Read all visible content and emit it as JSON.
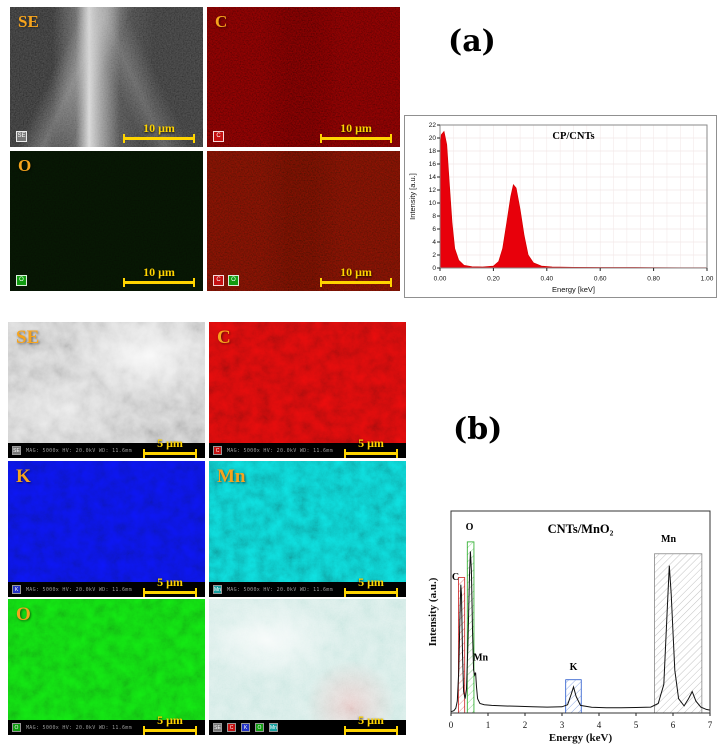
{
  "panels": {
    "a": {
      "label": "(a)",
      "tiles": {
        "se": {
          "label": "SE",
          "scale": "10 μm",
          "chip": "SE"
        },
        "c": {
          "label": "C",
          "scale": "10 μm",
          "chip": "C"
        },
        "o": {
          "label": "O",
          "scale": "10 μm",
          "chip": "O"
        },
        "overlay": {
          "scale": "10 μm",
          "chips": [
            "C",
            "O"
          ]
        }
      }
    },
    "b": {
      "label": "(b)",
      "meta": "MAG: 5000x  HV: 20.0kV  WD: 11.6mm",
      "tiles": {
        "se": {
          "label": "SE",
          "scale": "5 μm",
          "chip": "SE"
        },
        "c": {
          "label": "C",
          "scale": "5 μm",
          "chip": "C"
        },
        "k": {
          "label": "K",
          "scale": "5 μm",
          "chip": "K"
        },
        "mn": {
          "label": "Mn",
          "scale": "5 μm",
          "chip": "Mn"
        },
        "o": {
          "label": "O",
          "scale": "5 μm",
          "chip": "O"
        },
        "overlay": {
          "scale": "5 μm",
          "chips": [
            "SE",
            "C",
            "K",
            "O",
            "Mn"
          ]
        }
      }
    }
  },
  "chart_data": [
    {
      "type": "area",
      "title": "CP/CNTs",
      "xlabel": "Energy [keV]",
      "ylabel": "Intensity [a.u.]",
      "xlim": [
        0,
        1.0
      ],
      "ylim": [
        0,
        22
      ],
      "grid": true,
      "legend_position": "none",
      "line_color": "#d40000",
      "fill_color": "#e8000b",
      "baseline_color": "#e8000b",
      "frame_color": "#8a8a8a",
      "xticks": [
        [
          0,
          "0.00"
        ],
        [
          0.2,
          "0.20"
        ],
        [
          0.4,
          "0.40"
        ],
        [
          0.6,
          "0.60"
        ],
        [
          0.8,
          "0.80"
        ],
        [
          1,
          "1.00"
        ]
      ],
      "yticks": [
        [
          0,
          "0"
        ],
        [
          2,
          "2"
        ],
        [
          4,
          "4"
        ],
        [
          6,
          "6"
        ],
        [
          8,
          "8"
        ],
        [
          10,
          "10"
        ],
        [
          12,
          "12"
        ],
        [
          14,
          "14"
        ],
        [
          16,
          "16"
        ],
        [
          18,
          "18"
        ],
        [
          20,
          "20"
        ],
        [
          22,
          "22"
        ]
      ],
      "points": [
        [
          0,
          18
        ],
        [
          0.005,
          20.5
        ],
        [
          0.015,
          21
        ],
        [
          0.025,
          19
        ],
        [
          0.035,
          13
        ],
        [
          0.045,
          7
        ],
        [
          0.055,
          3
        ],
        [
          0.07,
          1.2
        ],
        [
          0.09,
          0.4
        ],
        [
          0.12,
          0.2
        ],
        [
          0.16,
          0.15
        ],
        [
          0.2,
          0.3
        ],
        [
          0.22,
          1
        ],
        [
          0.235,
          3
        ],
        [
          0.25,
          7
        ],
        [
          0.265,
          11
        ],
        [
          0.275,
          12.8
        ],
        [
          0.285,
          12.3
        ],
        [
          0.3,
          9
        ],
        [
          0.315,
          5
        ],
        [
          0.33,
          2
        ],
        [
          0.35,
          0.8
        ],
        [
          0.38,
          0.3
        ],
        [
          0.42,
          0.15
        ],
        [
          0.5,
          0.1
        ],
        [
          0.6,
          0.08
        ],
        [
          0.7,
          0.08
        ],
        [
          0.8,
          0.06
        ],
        [
          0.9,
          0.05
        ],
        [
          1,
          0.05
        ]
      ]
    },
    {
      "type": "line",
      "title": "CNTs/MnO₂",
      "xlabel": "Energy (keV)",
      "ylabel": "Intensity (a.u.)",
      "xlim": [
        0,
        7
      ],
      "ylim": [
        0,
        85
      ],
      "grid": false,
      "legend_position": "none",
      "line_color": "#111111",
      "frame_color": "#333333",
      "xticks": [
        [
          0,
          "0"
        ],
        [
          1,
          "1"
        ],
        [
          2,
          "2"
        ],
        [
          3,
          "3"
        ],
        [
          4,
          "4"
        ],
        [
          5,
          "5"
        ],
        [
          6,
          "6"
        ],
        [
          7,
          "7"
        ]
      ],
      "points": [
        [
          0,
          0.5
        ],
        [
          0.08,
          1
        ],
        [
          0.13,
          2
        ],
        [
          0.17,
          5
        ],
        [
          0.21,
          18
        ],
        [
          0.24,
          40
        ],
        [
          0.265,
          54
        ],
        [
          0.285,
          50
        ],
        [
          0.31,
          25
        ],
        [
          0.34,
          9
        ],
        [
          0.38,
          6
        ],
        [
          0.42,
          10
        ],
        [
          0.46,
          30
        ],
        [
          0.5,
          58
        ],
        [
          0.525,
          68
        ],
        [
          0.55,
          60
        ],
        [
          0.58,
          35
        ],
        [
          0.61,
          18
        ],
        [
          0.64,
          16
        ],
        [
          0.665,
          17
        ],
        [
          0.69,
          11
        ],
        [
          0.72,
          6
        ],
        [
          0.78,
          4
        ],
        [
          0.9,
          3.5
        ],
        [
          1.1,
          3.2
        ],
        [
          1.4,
          3
        ],
        [
          1.8,
          2.8
        ],
        [
          2.2,
          2.6
        ],
        [
          2.6,
          2.5
        ],
        [
          3,
          2.6
        ],
        [
          3.15,
          3.5
        ],
        [
          3.25,
          8
        ],
        [
          3.31,
          11
        ],
        [
          3.38,
          7
        ],
        [
          3.5,
          3.2
        ],
        [
          3.8,
          2.4
        ],
        [
          4.2,
          2.2
        ],
        [
          4.6,
          2.2
        ],
        [
          5,
          2.3
        ],
        [
          5.4,
          2.5
        ],
        [
          5.6,
          4
        ],
        [
          5.75,
          12
        ],
        [
          5.85,
          45
        ],
        [
          5.9,
          62
        ],
        [
          5.95,
          50
        ],
        [
          6.05,
          18
        ],
        [
          6.15,
          6
        ],
        [
          6.3,
          3
        ],
        [
          6.42,
          6
        ],
        [
          6.52,
          9
        ],
        [
          6.62,
          5
        ],
        [
          6.75,
          2.5
        ],
        [
          6.9,
          1.5
        ],
        [
          7,
          1.2
        ]
      ],
      "regions": [
        {
          "label": "C",
          "x0": 0.2,
          "x1": 0.37,
          "y1": 57,
          "color": "#cc2222"
        },
        {
          "label": "O",
          "x0": 0.44,
          "x1": 0.62,
          "y1": 72,
          "color": "#22aa22"
        },
        {
          "label": "K",
          "x0": 3.1,
          "x1": 3.52,
          "y1": 14,
          "color": "#2255cc"
        },
        {
          "label": "Mn",
          "x0": 5.5,
          "x1": 6.78,
          "y1": 67,
          "color": "#888888"
        }
      ],
      "peak_labels": [
        {
          "text": "C",
          "x": 0.12,
          "y": 56
        },
        {
          "text": "O",
          "x": 0.5,
          "y": 77
        },
        {
          "text": "Mn",
          "x": 0.8,
          "y": 22
        },
        {
          "text": "K",
          "x": 3.31,
          "y": 18
        },
        {
          "text": "Mn",
          "x": 5.88,
          "y": 72
        }
      ]
    }
  ]
}
